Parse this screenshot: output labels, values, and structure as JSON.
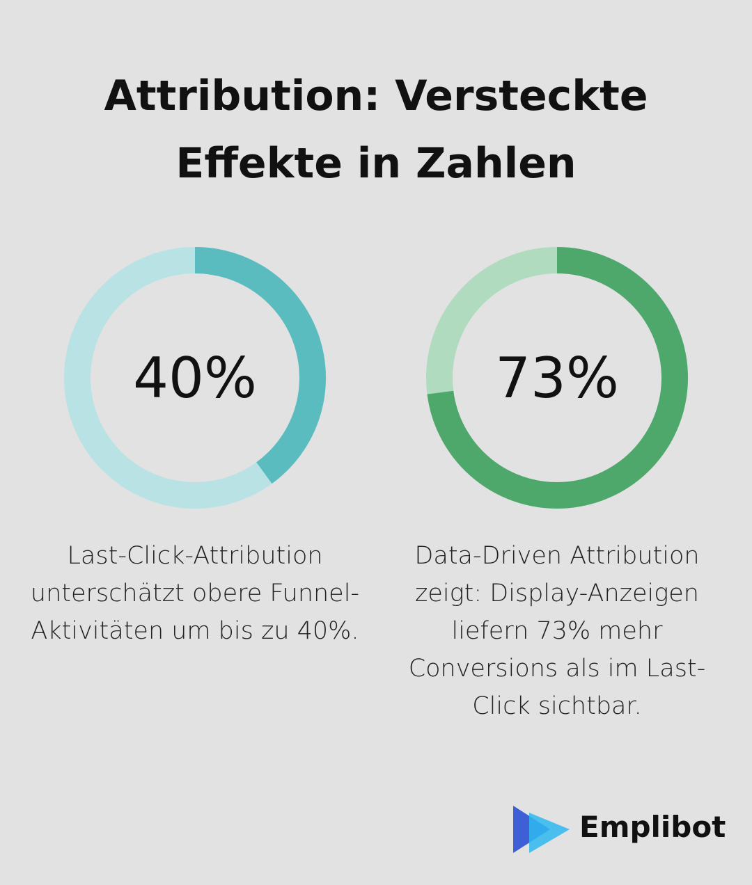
{
  "title": "Attribution: Versteckte Effekte in Zahlen",
  "chart_data": [
    {
      "type": "donut",
      "values": [
        40
      ],
      "value_labels": [
        "40%"
      ],
      "ylim": [
        0,
        100
      ],
      "color": "#5bbcc0",
      "track_color": "#b9e2e4",
      "caption": "Last-Click-Attribution unterschätzt obere Funnel-Aktivitäten um bis zu 40%."
    },
    {
      "type": "donut",
      "values": [
        73
      ],
      "value_labels": [
        "73%"
      ],
      "ylim": [
        0,
        100
      ],
      "color": "#4ea86c",
      "track_color": "#b0dbbf",
      "caption": "Data-Driven Attribution zeigt: Display-Anzeigen liefern 73% mehr Conversions als im Last-Click sichtbar."
    }
  ],
  "brand": "Emplibot"
}
